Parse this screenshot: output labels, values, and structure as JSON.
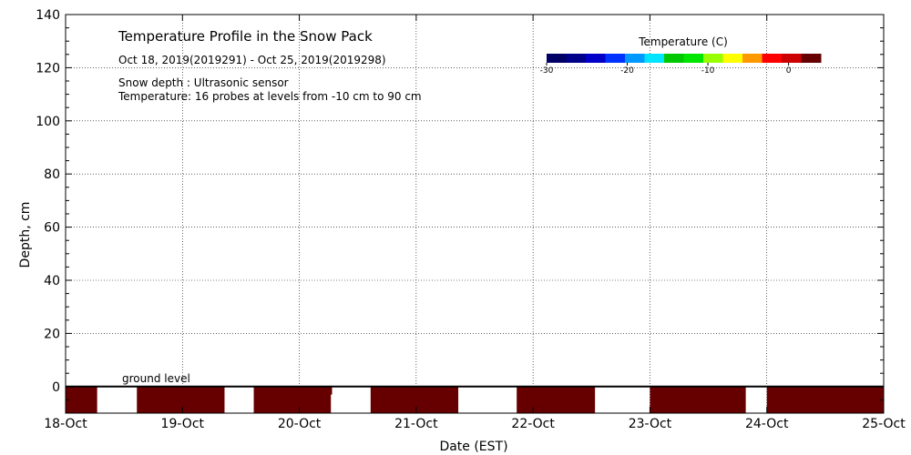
{
  "chart_data": {
    "type": "heatmap",
    "title": "Temperature Profile in the Snow Pack",
    "subtitle": "Oct 18, 2019(2019291) - Oct 25, 2019(2019298)",
    "notes": [
      "Snow depth : Ultrasonic sensor",
      "Temperature: 16 probes at levels from -10 cm to 90 cm"
    ],
    "xlabel": "Date (EST)",
    "ylabel": "Depth, cm",
    "xlim": [
      0,
      7
    ],
    "ylim": [
      -10,
      140
    ],
    "x_ticks": [
      {
        "value": 0,
        "label": "18-Oct"
      },
      {
        "value": 1,
        "label": "19-Oct"
      },
      {
        "value": 2,
        "label": "20-Oct"
      },
      {
        "value": 3,
        "label": "21-Oct"
      },
      {
        "value": 4,
        "label": "22-Oct"
      },
      {
        "value": 5,
        "label": "23-Oct"
      },
      {
        "value": 6,
        "label": "24-Oct"
      },
      {
        "value": 7,
        "label": "25-Oct"
      }
    ],
    "y_ticks": [
      0,
      20,
      40,
      60,
      80,
      100,
      120,
      140
    ],
    "grid": true,
    "ground_level_label": "ground level",
    "ground_level_depth": 0,
    "colorbar": {
      "title": "Temperature (C)",
      "ticks": [
        -30,
        -20,
        -10,
        0
      ],
      "range": [
        -30,
        4
      ],
      "colors": [
        "#000066",
        "#00008b",
        "#0000c8",
        "#0033ff",
        "#0099ff",
        "#00e5ff",
        "#00c800",
        "#00e600",
        "#99ff00",
        "#ffff00",
        "#ff9900",
        "#ff0000",
        "#cc0000",
        "#660000"
      ]
    },
    "cells": [
      {
        "x_start": 0.0,
        "x_end": 0.27,
        "depth_top": 0,
        "depth_bottom": -10,
        "temperature": 4
      },
      {
        "x_start": 0.61,
        "x_end": 1.36,
        "depth_top": 0,
        "depth_bottom": -10,
        "temperature": 4
      },
      {
        "x_start": 1.61,
        "x_end": 2.27,
        "depth_top": 0,
        "depth_bottom": -10,
        "temperature": 4
      },
      {
        "x_start": 2.04,
        "x_end": 2.28,
        "depth_top": 0,
        "depth_bottom": -3,
        "temperature": 2
      },
      {
        "x_start": 2.61,
        "x_end": 3.36,
        "depth_top": 0,
        "depth_bottom": -10,
        "temperature": 4
      },
      {
        "x_start": 3.86,
        "x_end": 4.53,
        "depth_top": 0,
        "depth_bottom": -10,
        "temperature": 4
      },
      {
        "x_start": 5.0,
        "x_end": 5.82,
        "depth_top": 0,
        "depth_bottom": -10,
        "temperature": 4
      },
      {
        "x_start": 6.0,
        "x_end": 7.0,
        "depth_top": 0,
        "depth_bottom": -10,
        "temperature": 4
      }
    ],
    "data_color": "#660000",
    "accent_color": "#ff0000"
  }
}
